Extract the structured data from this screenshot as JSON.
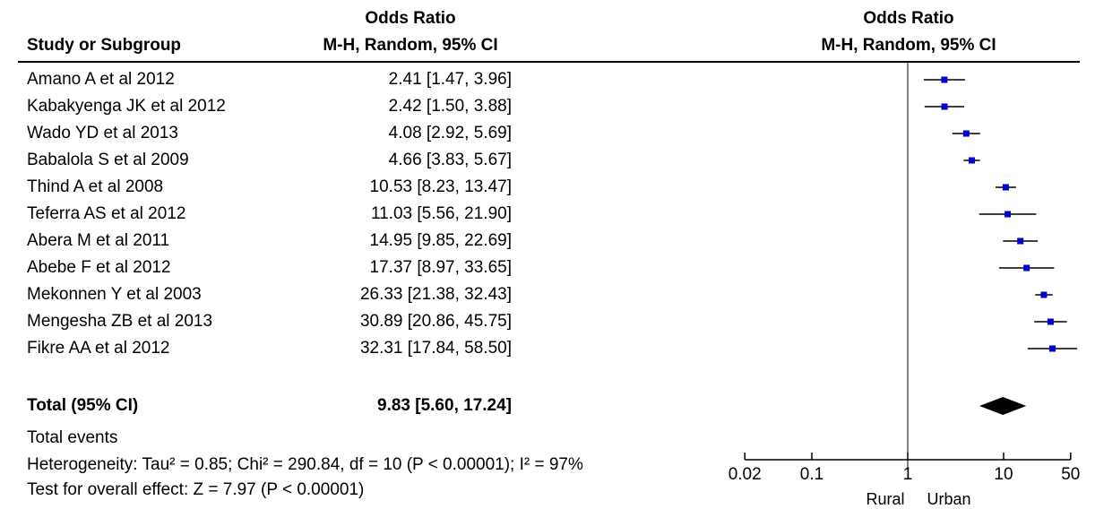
{
  "header": {
    "col_study": "Study or Subgroup",
    "col_or_title": "Odds Ratio",
    "col_or_method": "M-H, Random, 95% CI",
    "plot_title": "Odds Ratio",
    "plot_method": "M-H, Random, 95% CI"
  },
  "studies": [
    {
      "name": "Amano A et al 2012",
      "ci_text": "2.41 [1.47, 3.96]"
    },
    {
      "name": "Kabakyenga JK et al 2012",
      "ci_text": "2.42 [1.50, 3.88]"
    },
    {
      "name": "Wado YD et al 2013",
      "ci_text": "4.08 [2.92, 5.69]"
    },
    {
      "name": "Babalola S et al 2009",
      "ci_text": "4.66 [3.83, 5.67]"
    },
    {
      "name": "Thind A et al 2008",
      "ci_text": "10.53 [8.23, 13.47]"
    },
    {
      "name": "Teferra AS et al 2012",
      "ci_text": "11.03 [5.56, 21.90]"
    },
    {
      "name": "Abera M et al 2011",
      "ci_text": "14.95 [9.85, 22.69]"
    },
    {
      "name": "Abebe F et al 2012",
      "ci_text": "17.37 [8.97, 33.65]"
    },
    {
      "name": "Mekonnen Y et al 2003",
      "ci_text": "26.33 [21.38, 32.43]"
    },
    {
      "name": "Mengesha ZB et al 2013",
      "ci_text": "30.89 [20.86, 45.75]"
    },
    {
      "name": "Fikre AA et al 2012",
      "ci_text": "32.31 [17.84, 58.50]"
    }
  ],
  "total": {
    "label": "Total (95% CI)",
    "ci_text": "9.83 [5.60, 17.24]"
  },
  "footer": {
    "total_events": "Total events",
    "heterogeneity": "Heterogeneity: Tau² = 0.85; Chi² = 290.84, df = 10 (P < 0.00001); I² = 97%",
    "overall_effect": "Test for overall effect: Z = 7.97 (P < 0.00001)"
  },
  "axis": {
    "tick_labels": [
      "0.02",
      "0.1",
      "1",
      "10",
      "50"
    ],
    "favours_left": "Rural",
    "favours_right": "Urban"
  },
  "colors": {
    "marker": "#0000cc",
    "line": "#000000",
    "diamond": "#000000"
  },
  "chart_data": {
    "type": "scatter",
    "title": "Odds Ratio",
    "subtitle": "M-H, Random, 95% CI",
    "scale": "log",
    "xlim": [
      0.02,
      50
    ],
    "ticks": [
      0.02,
      0.1,
      1,
      10,
      50
    ],
    "reference_line": 1,
    "grid": false,
    "series": [
      {
        "points": [
          {
            "study": "Amano A et al 2012",
            "or": 2.41,
            "lo": 1.47,
            "hi": 3.96
          },
          {
            "study": "Kabakyenga JK et al 2012",
            "or": 2.42,
            "lo": 1.5,
            "hi": 3.88
          },
          {
            "study": "Wado YD et al 2013",
            "or": 4.08,
            "lo": 2.92,
            "hi": 5.69
          },
          {
            "study": "Babalola S et al 2009",
            "or": 4.66,
            "lo": 3.83,
            "hi": 5.67
          },
          {
            "study": "Thind A et al 2008",
            "or": 10.53,
            "lo": 8.23,
            "hi": 13.47
          },
          {
            "study": "Teferra AS et al 2012",
            "or": 11.03,
            "lo": 5.56,
            "hi": 21.9
          },
          {
            "study": "Abera M et al 2011",
            "or": 14.95,
            "lo": 9.85,
            "hi": 22.69
          },
          {
            "study": "Abebe F et al 2012",
            "or": 17.37,
            "lo": 8.97,
            "hi": 33.65
          },
          {
            "study": "Mekonnen Y et al 2003",
            "or": 26.33,
            "lo": 21.38,
            "hi": 32.43
          },
          {
            "study": "Mengesha ZB et al 2013",
            "or": 30.89,
            "lo": 20.86,
            "hi": 45.75
          },
          {
            "study": "Fikre AA et al 2012",
            "or": 32.31,
            "lo": 17.84,
            "hi": 58.5
          }
        ]
      }
    ],
    "pooled": {
      "or": 9.83,
      "lo": 5.6,
      "hi": 17.24
    }
  }
}
